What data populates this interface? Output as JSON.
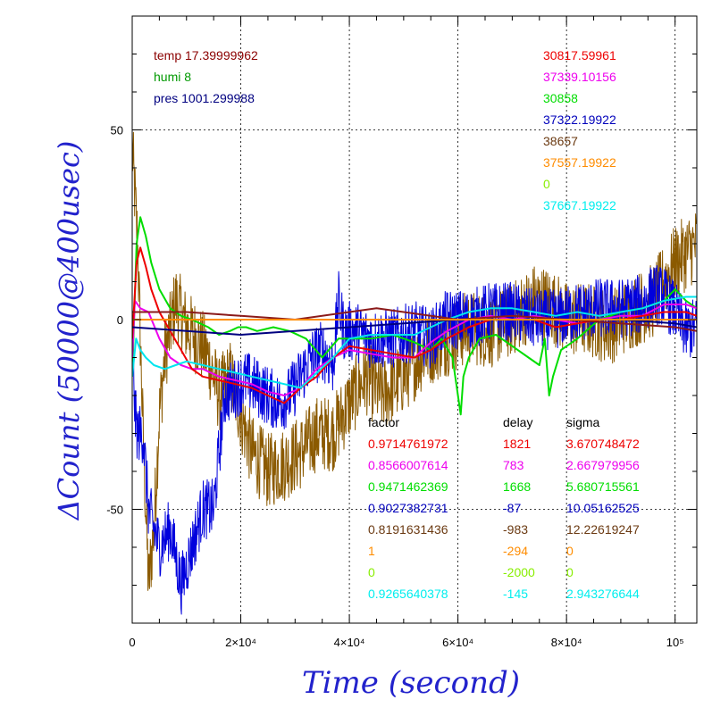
{
  "chart_data": {
    "type": "line",
    "xlabel": "Time (second)",
    "ylabel": "ΔCount (50000@400usec)",
    "xlim": [
      0,
      104000
    ],
    "ylim": [
      -80,
      80
    ],
    "grid": true,
    "x_ticks": [
      {
        "value": 0,
        "label": "0"
      },
      {
        "value": 20000,
        "label": "2×10⁴"
      },
      {
        "value": 40000,
        "label": "4×10⁴"
      },
      {
        "value": 60000,
        "label": "6×10⁴"
      },
      {
        "value": 80000,
        "label": "8×10⁴"
      },
      {
        "value": 100000,
        "label": "10⁵"
      }
    ],
    "y_ticks": [
      {
        "value": -50,
        "label": "-50"
      },
      {
        "value": 0,
        "label": "0"
      },
      {
        "value": 50,
        "label": "50"
      }
    ],
    "env": [
      {
        "text": "temp 17.39999962",
        "color": "#8b0000"
      },
      {
        "text": "humi 8",
        "color": "#009900"
      },
      {
        "text": "pres 1001.299988",
        "color": "#000080"
      }
    ],
    "base_values": [
      {
        "text": "30817.59961",
        "color": "#ee0000"
      },
      {
        "text": "37339.10156",
        "color": "#ee00ee"
      },
      {
        "text": "30858",
        "color": "#00dd00"
      },
      {
        "text": "37322.19922",
        "color": "#0000bb"
      },
      {
        "text": "38657",
        "color": "#6b3a12"
      },
      {
        "text": "37557.19922",
        "color": "#ff8c00"
      },
      {
        "text": "0",
        "color": "#88ee00"
      },
      {
        "text": "37667.19922",
        "color": "#00eeee"
      }
    ],
    "table_headers": [
      "factor",
      "delay",
      "sigma"
    ],
    "table": [
      {
        "factor": "0.9714761972",
        "delay": "1821",
        "sigma": "3.670748472",
        "color": "#ee0000"
      },
      {
        "factor": "0.8566007614",
        "delay": "783",
        "sigma": "2.667979956",
        "color": "#ee00ee"
      },
      {
        "factor": "0.9471462369",
        "delay": "1668",
        "sigma": "5.680715561",
        "color": "#00dd00"
      },
      {
        "factor": "0.9027382731",
        "delay": "-87",
        "sigma": "10.05162525",
        "color": "#0000bb"
      },
      {
        "factor": "0.8191631436",
        "delay": "-983",
        "sigma": "12.22619247",
        "color": "#6b3a12"
      },
      {
        "factor": "1",
        "delay": "-294",
        "sigma": "0",
        "color": "#ff8c00"
      },
      {
        "factor": "0",
        "delay": "-2000",
        "sigma": "0",
        "color": "#88ee00"
      },
      {
        "factor": "0.9265640378",
        "delay": "-145",
        "sigma": "2.943276644",
        "color": "#00eeee"
      }
    ],
    "series": [
      {
        "color": "#8b5a00",
        "noise": 10,
        "x": [
          0,
          1000,
          2000,
          3000,
          4000,
          5000,
          6000,
          8000,
          10000,
          12000,
          14000,
          16000,
          18000,
          20000,
          22000,
          25000,
          28000,
          31000,
          34000,
          37000,
          40000,
          43000,
          46000,
          50000,
          54000,
          58000,
          62000,
          66000,
          70000,
          74000,
          77000,
          80000,
          84000,
          88000,
          92000,
          96000,
          100000,
          104000
        ],
        "y": [
          45,
          20,
          -30,
          -70,
          -55,
          -25,
          -10,
          5,
          -2,
          -5,
          -10,
          -20,
          -15,
          -25,
          -35,
          -40,
          -38,
          -35,
          -30,
          -30,
          -22,
          -15,
          -20,
          -15,
          -8,
          -5,
          -2,
          -3,
          0,
          5,
          4,
          0,
          0,
          -2,
          2,
          5,
          15,
          20
        ]
      },
      {
        "color": "#0000dd",
        "noise": 8,
        "x": [
          0,
          500,
          1000,
          2000,
          3000,
          5000,
          7000,
          9000,
          11000,
          13000,
          15000,
          17000,
          19000,
          21000,
          23000,
          25000,
          27000,
          29000,
          31000,
          33000,
          35000,
          37000,
          38000,
          39000,
          41000,
          44000,
          48000,
          52000,
          55000,
          58000,
          62000,
          66000,
          70000,
          74000,
          78000,
          82000,
          86000,
          90000,
          94000,
          96000,
          98000,
          100000,
          102000,
          104000
        ],
        "y": [
          0,
          -25,
          -30,
          -30,
          -50,
          -60,
          -55,
          -70,
          -60,
          -50,
          -50,
          -20,
          -18,
          -16,
          -18,
          -20,
          -22,
          -20,
          -15,
          -10,
          -8,
          -12,
          5,
          -3,
          -3,
          -5,
          -5,
          -3,
          -5,
          0,
          0,
          2,
          2,
          0,
          0,
          2,
          3,
          3,
          4,
          7,
          6,
          2,
          -3,
          -2
        ]
      },
      {
        "color": "#00dd00",
        "noise": 0,
        "x": [
          0,
          800,
          1500,
          2500,
          3500,
          5000,
          7000,
          9000,
          11000,
          14000,
          16000,
          18000,
          19500,
          21000,
          23000,
          26000,
          29000,
          32000,
          35000,
          38000,
          41000,
          44000,
          48000,
          52000,
          55000,
          57000,
          59000,
          60500,
          61000,
          62000,
          64000,
          67000,
          70000,
          73000,
          75000,
          76000,
          76800,
          77500,
          79000,
          82000,
          86000,
          90000,
          94000,
          98000,
          100000,
          102000,
          104000
        ],
        "y": [
          -15,
          20,
          27,
          22,
          15,
          8,
          3,
          1,
          0,
          -2,
          -4,
          -3,
          -2,
          -2,
          -3,
          -2,
          -3,
          -5,
          -10,
          -5,
          -5,
          -5,
          -4,
          -6,
          -8,
          -5,
          -10,
          -25,
          -15,
          -10,
          -5,
          -4,
          -7,
          -10,
          -12,
          -5,
          -20,
          -15,
          -8,
          -5,
          0,
          2,
          3,
          5,
          8,
          5,
          3
        ]
      },
      {
        "color": "#ee00ee",
        "noise": 0,
        "x": [
          0,
          500,
          1500,
          3000,
          5000,
          7000,
          9000,
          11000,
          13000,
          16000,
          19000,
          22000,
          25000,
          28000,
          31000,
          34000,
          37000,
          40000,
          44000,
          48000,
          52000,
          55000,
          58000,
          62000,
          66000,
          70000,
          74000,
          78000,
          82000,
          86000,
          90000,
          94000,
          98000,
          102000,
          104000
        ],
        "y": [
          -10,
          5,
          3,
          2,
          -5,
          -10,
          -12,
          -13,
          -13,
          -15,
          -16,
          -17,
          -19,
          -20,
          -18,
          -13,
          -10,
          -8,
          -9,
          -10,
          -10,
          -6,
          -3,
          0,
          1,
          0,
          1,
          0,
          -1,
          0,
          1,
          1,
          4,
          4,
          3
        ]
      },
      {
        "color": "#ee0000",
        "noise": 0,
        "x": [
          0,
          800,
          1500,
          2500,
          3500,
          5000,
          7000,
          9000,
          11000,
          13000,
          16000,
          19000,
          22000,
          25000,
          28000,
          31000,
          34000,
          37000,
          40000,
          44000,
          48000,
          52000,
          55000,
          58000,
          62000,
          66000,
          70000,
          74000,
          78000,
          82000,
          86000,
          90000,
          94000,
          98000,
          102000,
          104000
        ],
        "y": [
          -5,
          15,
          19,
          14,
          8,
          2,
          -3,
          -8,
          -13,
          -15,
          -16,
          -17,
          -18,
          -20,
          -22,
          -18,
          -15,
          -10,
          -7,
          -8,
          -9,
          -10,
          -8,
          -5,
          -2,
          0,
          0,
          0,
          -2,
          -1,
          0,
          0,
          1,
          2,
          2,
          1
        ]
      },
      {
        "color": "#00e5ee",
        "noise": 0,
        "x": [
          0,
          700,
          1500,
          2500,
          4000,
          6000,
          8000,
          10000,
          13000,
          16000,
          19000,
          22000,
          25000,
          28000,
          31000,
          34000,
          37000,
          40000,
          44000,
          48000,
          52000,
          55000,
          58000,
          62000,
          66000,
          70000,
          74000,
          78000,
          82000,
          86000,
          90000,
          94000,
          98000,
          102000,
          104000
        ],
        "y": [
          -15,
          -5,
          -8,
          -10,
          -12,
          -13,
          -12,
          -11,
          -12,
          -13,
          -14,
          -15,
          -16,
          -17,
          -18,
          -14,
          -10,
          -5,
          -4,
          -4,
          -4,
          -2,
          0,
          2,
          3,
          3,
          2,
          1,
          2,
          1,
          2,
          3,
          5,
          6,
          6
        ]
      },
      {
        "color": "#8b1a1a",
        "noise": 0,
        "x": [
          0,
          10000,
          20000,
          30000,
          40000,
          45000,
          50000,
          60000,
          70000,
          80000,
          90000,
          100000,
          104000
        ],
        "y": [
          2,
          2,
          1,
          0,
          2,
          3,
          2,
          0,
          1,
          0,
          -1,
          -2,
          -3
        ]
      },
      {
        "color": "#000080",
        "noise": 0,
        "x": [
          0,
          10000,
          20000,
          30000,
          40000,
          50000,
          60000,
          70000,
          80000,
          90000,
          100000,
          104000
        ],
        "y": [
          -2,
          -3,
          -4,
          -3,
          -2,
          -1,
          0,
          0,
          0,
          0,
          -1,
          -2
        ]
      },
      {
        "color": "#ff8c00",
        "noise": 0,
        "x": [
          0,
          104000
        ],
        "y": [
          0,
          0
        ]
      }
    ]
  }
}
